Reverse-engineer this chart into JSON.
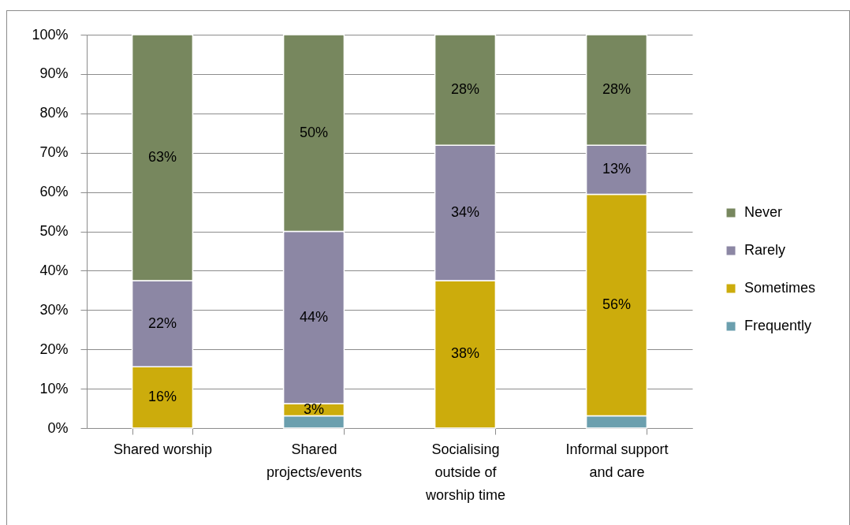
{
  "chart_data": {
    "type": "bar",
    "categories": [
      "Shared worship",
      "Shared projects/events",
      "Socialising outside of worship time",
      "Informal support and care"
    ],
    "series": [
      {
        "name": "Frequently",
        "color": "#6b9fae",
        "values": [
          null,
          3.1,
          null,
          3.1
        ]
      },
      {
        "name": "Sometimes",
        "color": "#ccac0c",
        "values": [
          15.6,
          3.1,
          37.5,
          56.3
        ],
        "value_labels": [
          "16%",
          "3%",
          "38%",
          "56%"
        ]
      },
      {
        "name": "Rarely",
        "color": "#8c87a4",
        "values": [
          21.9,
          43.8,
          34.4,
          12.5
        ],
        "value_labels": [
          "22%",
          "44%",
          "34%",
          "13%"
        ]
      },
      {
        "name": "Never",
        "color": "#77875e",
        "values": [
          62.5,
          50,
          28.1,
          28.1
        ],
        "value_labels": [
          "63%",
          "50%",
          "28%",
          "28%"
        ]
      }
    ],
    "stacked": true,
    "ylim": [
      0,
      100
    ],
    "yticks": [
      {
        "value": 0,
        "label": "0%"
      },
      {
        "value": 10,
        "label": "10%"
      },
      {
        "value": 20,
        "label": "20%"
      },
      {
        "value": 30,
        "label": "30%"
      },
      {
        "value": 40,
        "label": "40%"
      },
      {
        "value": 50,
        "label": "50%"
      },
      {
        "value": 60,
        "label": "60%"
      },
      {
        "value": 70,
        "label": "70%"
      },
      {
        "value": 80,
        "label": "80%"
      },
      {
        "value": 90,
        "label": "90%"
      },
      {
        "value": 100,
        "label": "100%"
      }
    ],
    "grid": "y",
    "legend": "right"
  }
}
